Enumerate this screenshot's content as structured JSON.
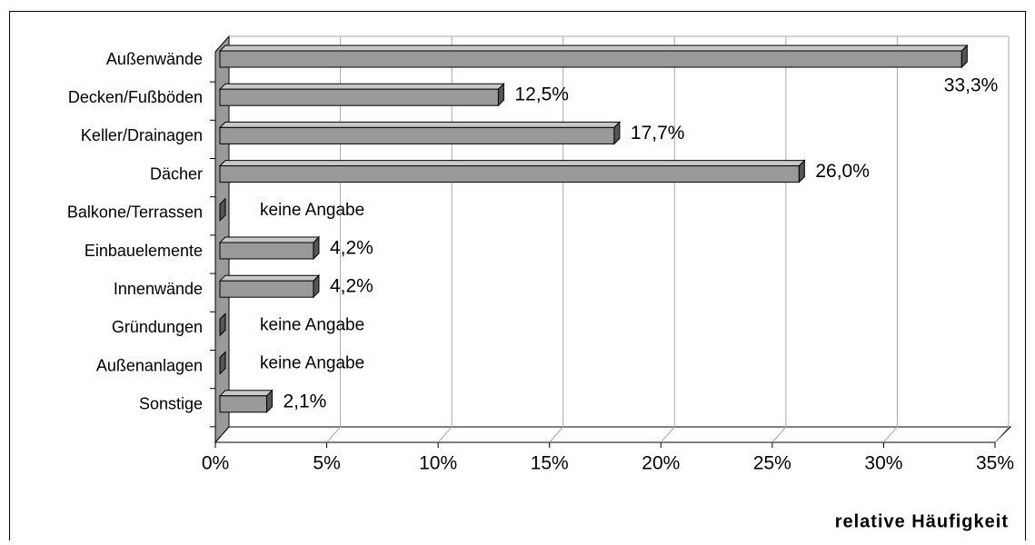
{
  "chart_data": {
    "type": "bar",
    "orientation": "horizontal",
    "3d": true,
    "categories": [
      "Außenwände",
      "Decken/Fußböden",
      "Keller/Drainagen",
      "Dächer",
      "Balkone/Terrassen",
      "Einbauelemente",
      "Innenwände",
      "Gründungen",
      "Außenanlagen",
      "Sonstige"
    ],
    "values": [
      33.3,
      12.5,
      17.7,
      26.0,
      0,
      4.2,
      4.2,
      0,
      0,
      2.1
    ],
    "value_labels": [
      "33,3%",
      "12,5%",
      "17,7%",
      "26,0%",
      "keine Angabe",
      "4,2%",
      "4,2%",
      "keine Angabe",
      "keine Angabe",
      "2,1%"
    ],
    "color": "#999999",
    "xlim": [
      0,
      35
    ],
    "xticks": [
      {
        "value": 0,
        "label": "0%"
      },
      {
        "value": 5,
        "label": "5%"
      },
      {
        "value": 10,
        "label": "10%"
      },
      {
        "value": 15,
        "label": "15%"
      },
      {
        "value": 20,
        "label": "20%"
      },
      {
        "value": 25,
        "label": "25%"
      },
      {
        "value": 30,
        "label": "30%"
      },
      {
        "value": 35,
        "label": "35%"
      }
    ],
    "xlabel": "relative Häufigkeit",
    "grid": true
  }
}
